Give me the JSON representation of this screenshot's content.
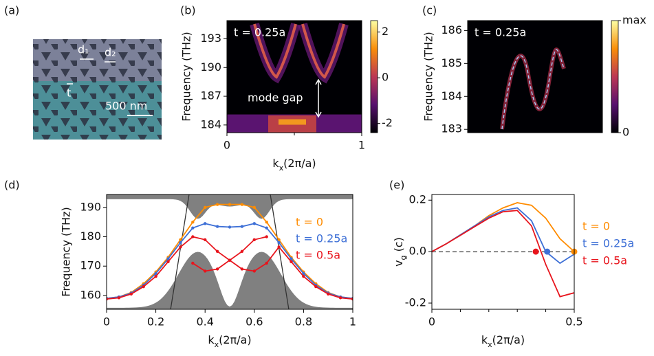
{
  "panel_labels": [
    "(a)",
    "(b)",
    "(c)",
    "(d)",
    "(e)"
  ],
  "sem_image": {
    "labels": [
      "d₁",
      "d₂",
      "t",
      "500 nm"
    ]
  },
  "chart_data": [
    {
      "type": "heatmap",
      "annotations": [
        "t = 0.25a",
        "mode gap"
      ],
      "ylabel": "Frequency (THz)",
      "xlabel": [
        "k",
        "x",
        "(2π/a)"
      ],
      "xlim": [
        0,
        1
      ],
      "xticks": [
        0,
        1
      ],
      "xminor": [
        0.5
      ],
      "ylim": [
        183.2,
        194.9
      ],
      "yticks": [
        184,
        187,
        190,
        193
      ],
      "clim": [
        -2.4,
        2.5
      ],
      "cticks": [
        -2,
        0,
        2
      ],
      "colormap": [
        "#000004",
        "#57106e",
        "#bc3754",
        "#f98e09",
        "#fcffa4"
      ]
    },
    {
      "type": "heatmap",
      "annotations": [
        "t = 0.25a"
      ],
      "ylabel": "Frequency (THz)",
      "ylim": [
        182.9,
        186.3
      ],
      "yticks": [
        183,
        184,
        185,
        186
      ],
      "clim": [
        0,
        1
      ],
      "cticks": [
        0,
        {
          "value": 1,
          "label": "max"
        }
      ],
      "colormap": [
        "#000004",
        "#57106e",
        "#bc3754",
        "#f98e09",
        "#fcffa4"
      ]
    },
    {
      "type": "line",
      "ylabel": "Frequency (THz)",
      "xlabel": [
        "k",
        "x",
        "(2π/a)"
      ],
      "markers": true,
      "xlim": [
        0,
        1
      ],
      "xticks": [
        0,
        0.2,
        0.4,
        0.6,
        0.8,
        1
      ],
      "ylim": [
        155.3,
        194.4
      ],
      "yticks": [
        160,
        170,
        180,
        190
      ],
      "x": [
        0,
        0.05,
        0.1,
        0.15,
        0.2,
        0.25,
        0.3,
        0.35,
        0.4,
        0.45,
        0.5,
        0.55,
        0.6,
        0.65,
        0.7,
        0.75,
        0.8,
        0.85,
        0.9,
        0.95,
        1
      ],
      "series": [
        {
          "name": "t = 0",
          "color": "#ff8c00",
          "values": [
            159,
            159.5,
            161,
            164,
            168,
            173,
            179,
            185,
            190,
            191,
            191,
            191,
            190,
            185,
            179,
            173,
            168,
            164,
            161,
            159.5,
            159
          ]
        },
        {
          "name": "t = 0.25a",
          "color": "#3d6fd6",
          "values": [
            159,
            159.5,
            160.8,
            163.5,
            167.5,
            172.5,
            178,
            183,
            184.5,
            183.5,
            183.3,
            183.5,
            184.5,
            183,
            178,
            172.5,
            167.5,
            163.5,
            160.8,
            159.5,
            159
          ]
        },
        {
          "name": "t = 0.5a",
          "color": "#e8141c",
          "values": [
            158.8,
            159.2,
            160.5,
            163,
            166.5,
            171.5,
            176.5,
            180,
            179,
            175,
            172,
            169,
            168.3,
            171,
            176.5,
            171.5,
            166.5,
            163,
            160.5,
            159.2,
            158.8
          ]
        },
        {
          "color": "#e8141c",
          "x": [
            0.35,
            0.4,
            0.45,
            0.5,
            0.55,
            0.6,
            0.65
          ],
          "values": [
            171,
            168.3,
            169,
            172,
            175,
            179,
            180
          ]
        }
      ]
    },
    {
      "type": "line",
      "ylabel": [
        "v",
        "g",
        " (c)"
      ],
      "xlabel": [
        "k",
        "x",
        "(2π/a)"
      ],
      "hline": 0,
      "xlim": [
        0,
        0.5
      ],
      "xticks": [
        0,
        0.5
      ],
      "xminor": [
        0.1,
        0.2,
        0.3,
        0.4
      ],
      "ylim": [
        -0.224,
        0.222
      ],
      "yticks": [
        -0.2,
        {
          "value": 0,
          "label": "0.0"
        },
        0.2
      ],
      "x": [
        0,
        0.05,
        0.1,
        0.15,
        0.2,
        0.25,
        0.3,
        0.35,
        0.4,
        0.45,
        0.5
      ],
      "series": [
        {
          "name": "t = 0",
          "color": "#ff8c00",
          "values": [
            0,
            0.03,
            0.065,
            0.1,
            0.14,
            0.17,
            0.19,
            0.18,
            0.13,
            0.05,
            0
          ]
        },
        {
          "name": "t = 0.25a",
          "color": "#3d6fd6",
          "values": [
            0,
            0.03,
            0.065,
            0.1,
            0.135,
            0.16,
            0.17,
            0.12,
            0,
            -0.045,
            -0.01
          ]
        },
        {
          "name": "t = 0.5a",
          "color": "#e8141c",
          "values": [
            0,
            0.03,
            0.063,
            0.097,
            0.13,
            0.155,
            0.16,
            0.1,
            -0.05,
            -0.175,
            -0.16
          ]
        }
      ],
      "points": [
        {
          "x": 0.365,
          "y": 0,
          "color": "#e8141c"
        },
        {
          "x": 0.405,
          "y": 0,
          "color": "#3d6fd6"
        },
        {
          "x": 0.5,
          "y": 0,
          "color": "#ff8c00"
        }
      ]
    }
  ]
}
